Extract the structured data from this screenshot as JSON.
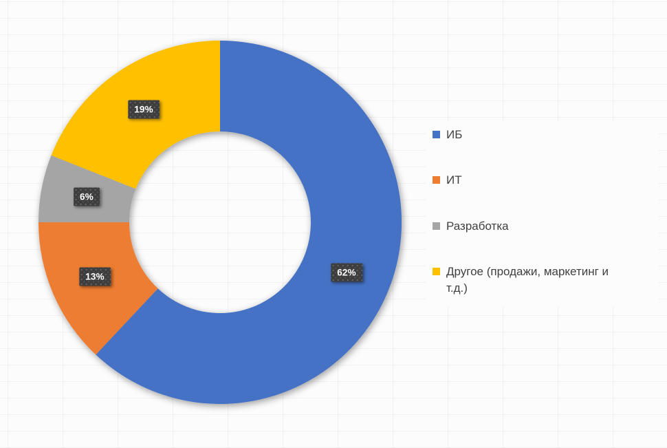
{
  "chart_data": {
    "type": "pie",
    "subtype": "donut",
    "title": "",
    "categories": [
      "ИБ",
      "ИТ",
      "Разработка",
      "Другое (продажи, маркетинг и т.д.)"
    ],
    "values": [
      62,
      13,
      6,
      19
    ],
    "data_labels": [
      "62%",
      "13%",
      "6%",
      "19%"
    ],
    "colors": [
      "#4472C4",
      "#ED7D31",
      "#A5A5A5",
      "#FFC000"
    ],
    "legend_position": "right",
    "start_angle_deg": 0,
    "direction": "clockwise",
    "hole_ratio": 0.5,
    "grid": "faint spreadsheet grid background"
  },
  "styles": {
    "data_label_bg": "#3D3D3D",
    "data_label_text": "#FFFFFF",
    "legend_text": "#404040",
    "background": "#FCFCFC",
    "gridline": "#F1F1F1"
  }
}
